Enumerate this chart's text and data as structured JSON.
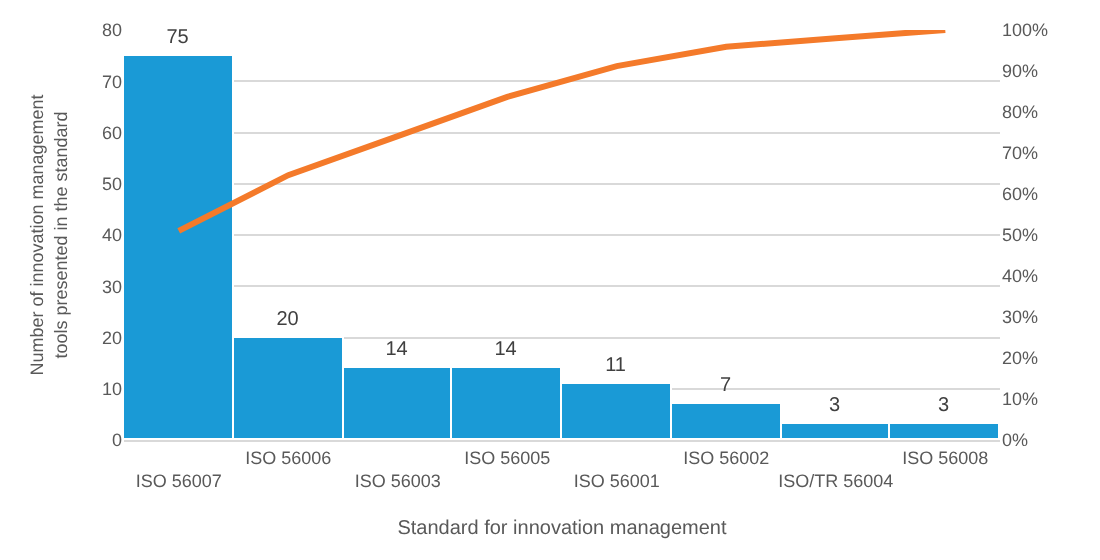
{
  "chart_data": {
    "type": "bar",
    "xlabel": "Standard for innovation management",
    "ylabel": "Number of innovation management tools presented in the standard",
    "categories": [
      "ISO 56007",
      "ISO 56006",
      "ISO 56003",
      "ISO 56005",
      "ISO 56001",
      "ISO 56002",
      "ISO/TR 56004",
      "ISO 56008"
    ],
    "series": [
      {
        "color": "#1a9ad6",
        "values": [
          75,
          20,
          14,
          14,
          11,
          7,
          3,
          3
        ],
        "value_labels": [
          "75",
          "20",
          "14",
          "14",
          "11",
          "7",
          "3",
          "3"
        ]
      },
      {
        "type": "line",
        "axis": "y2",
        "color": "#f47a2a",
        "values": [
          51.0,
          64.6,
          74.1,
          83.7,
          91.2,
          95.9,
          98.0,
          100
        ]
      }
    ],
    "ylim": [
      0,
      80
    ],
    "yticks": [
      0,
      10,
      20,
      30,
      40,
      50,
      60,
      70,
      80
    ],
    "y2lim": [
      0,
      100
    ],
    "y2ticks": [
      {
        "value": 0,
        "label": "0%"
      },
      {
        "value": 10,
        "label": "10%"
      },
      {
        "value": 20,
        "label": "20%"
      },
      {
        "value": 30,
        "label": "30%"
      },
      {
        "value": 40,
        "label": "40%"
      },
      {
        "value": 50,
        "label": "50%"
      },
      {
        "value": 60,
        "label": "60%"
      },
      {
        "value": 70,
        "label": "70%"
      },
      {
        "value": 80,
        "label": "80%"
      },
      {
        "value": 90,
        "label": "90%"
      },
      {
        "value": 100,
        "label": "100%"
      }
    ],
    "grid": "y",
    "marker": "none",
    "line_style": "solid",
    "legend": false
  }
}
